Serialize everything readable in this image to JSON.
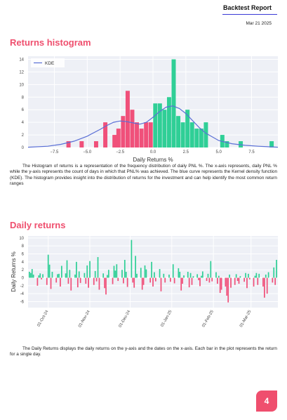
{
  "header": {
    "title": "Backtest Report",
    "date": "Mar 21 2025"
  },
  "histogram_section": {
    "title": "Returns histogram",
    "caption": "The Histogram of returns is a representation of the frequency distribution of daily PNL %. The x-axis represents, daily PNL % while the y-axis represents the count of days in which that PNL% was achieved. The blue curve represents the Kernel density function (KDE). The histogram provides insight into the distribution of returns for the investment and can help identify the most common return ranges"
  },
  "daily_section": {
    "title": "Daily returns",
    "caption": "The Daily Returns displays the daily returns on the y-axis and the dates on the x-axis. Each bar in the plot represents the return for a single day."
  },
  "page_number": "4",
  "colors": {
    "negative": "#f0507a",
    "positive": "#2fcf96",
    "kde": "#5a6fd6",
    "plot_bg": "#eef0f6",
    "accent": "#ef4f6e"
  },
  "chart_data": [
    {
      "type": "bar",
      "xlabel": "Daily Returns %",
      "ylabel": "",
      "xlim": [
        -9.5,
        9.5
      ],
      "ylim": [
        0,
        14.5
      ],
      "xticks": [
        -7.5,
        -5,
        -2.5,
        0,
        2.5,
        5,
        7.5
      ],
      "xtick_labels": [
        "−7.5",
        "−5.0",
        "−2.5",
        "0.0",
        "2.5",
        "5.0",
        "7.5"
      ],
      "yticks": [
        0,
        2,
        4,
        6,
        8,
        10,
        12,
        14
      ],
      "legend": {
        "entries": [
          "KDE"
        ],
        "position": "top-left"
      },
      "bin_width": 0.35,
      "bins": [
        {
          "x": -6.6,
          "value": 1
        },
        {
          "x": -5.6,
          "value": 1
        },
        {
          "x": -4.5,
          "value": 1
        },
        {
          "x": -3.8,
          "value": 4
        },
        {
          "x": -3.1,
          "value": 2
        },
        {
          "x": -2.8,
          "value": 3
        },
        {
          "x": -2.45,
          "value": 5
        },
        {
          "x": -2.1,
          "value": 9
        },
        {
          "x": -1.75,
          "value": 6
        },
        {
          "x": -1.4,
          "value": 4
        },
        {
          "x": -1.05,
          "value": 3
        },
        {
          "x": -0.7,
          "value": 4
        },
        {
          "x": -0.35,
          "value": 4
        },
        {
          "x": 0.0,
          "value": 7
        },
        {
          "x": 0.35,
          "value": 7
        },
        {
          "x": 0.7,
          "value": 6
        },
        {
          "x": 1.05,
          "value": 8
        },
        {
          "x": 1.4,
          "value": 14
        },
        {
          "x": 1.75,
          "value": 5
        },
        {
          "x": 2.1,
          "value": 4
        },
        {
          "x": 2.45,
          "value": 6
        },
        {
          "x": 2.8,
          "value": 4
        },
        {
          "x": 3.15,
          "value": 3
        },
        {
          "x": 3.5,
          "value": 3
        },
        {
          "x": 3.85,
          "value": 4
        },
        {
          "x": 5.1,
          "value": 2
        },
        {
          "x": 5.45,
          "value": 1
        },
        {
          "x": 6.5,
          "value": 1
        },
        {
          "x": 8.85,
          "value": 1
        }
      ],
      "kde": {
        "x": [
          -9.5,
          -8,
          -7,
          -6,
          -5,
          -4,
          -3.5,
          -3,
          -2.5,
          -2,
          -1.5,
          -1,
          -0.5,
          0,
          0.5,
          1,
          1.5,
          2,
          2.5,
          3,
          3.5,
          4,
          5,
          6,
          7,
          8,
          9.5
        ],
        "y": [
          0.05,
          0.2,
          0.5,
          1.0,
          1.8,
          2.9,
          3.5,
          4.0,
          4.2,
          4.1,
          3.9,
          3.7,
          4.0,
          4.8,
          5.7,
          6.4,
          6.6,
          6.2,
          5.4,
          4.3,
          3.2,
          2.3,
          1.1,
          0.6,
          0.35,
          0.2,
          0.05
        ]
      }
    },
    {
      "type": "bar",
      "title": "",
      "xlabel": "",
      "ylabel": "Daily Returns %",
      "ylim": [
        -7.5,
        10.5
      ],
      "yticks": [
        -6,
        -4,
        -2,
        0,
        2,
        4,
        6,
        8,
        10
      ],
      "x_start": "2024-09-17",
      "xticks": [
        "2024-10-01",
        "2024-11-01",
        "2024-12-01",
        "2025-01-01",
        "2025-02-01",
        "2025-03-01"
      ],
      "xtick_labels": [
        "01-Oct-24",
        "01-Nov-24",
        "01-Dec-24",
        "01-Jan-25",
        "01-Feb-25",
        "01-Mar-25"
      ],
      "dates": [
        "2024-09-17",
        "2024-09-18",
        "2024-09-19",
        "2024-09-20",
        "2024-09-23",
        "2024-09-24",
        "2024-09-25",
        "2024-09-26",
        "2024-09-27",
        "2024-09-30",
        "2024-10-01",
        "2024-10-02",
        "2024-10-03",
        "2024-10-04",
        "2024-10-07",
        "2024-10-08",
        "2024-10-09",
        "2024-10-10",
        "2024-10-11",
        "2024-10-14",
        "2024-10-15",
        "2024-10-16",
        "2024-10-17",
        "2024-10-18",
        "2024-10-21",
        "2024-10-22",
        "2024-10-23",
        "2024-10-24",
        "2024-10-25",
        "2024-10-28",
        "2024-10-29",
        "2024-10-30",
        "2024-10-31",
        "2024-11-01",
        "2024-11-04",
        "2024-11-05",
        "2024-11-06",
        "2024-11-07",
        "2024-11-08",
        "2024-11-11",
        "2024-11-12",
        "2024-11-13",
        "2024-11-14",
        "2024-11-15",
        "2024-11-18",
        "2024-11-19",
        "2024-11-20",
        "2024-11-21",
        "2024-11-22",
        "2024-11-25",
        "2024-11-26",
        "2024-11-27",
        "2024-11-28",
        "2024-11-29",
        "2024-12-02",
        "2024-12-03",
        "2024-12-04",
        "2024-12-05",
        "2024-12-06",
        "2024-12-09",
        "2024-12-10",
        "2024-12-11",
        "2024-12-12",
        "2024-12-13",
        "2024-12-16",
        "2024-12-17",
        "2024-12-18",
        "2024-12-19",
        "2024-12-20",
        "2024-12-23",
        "2024-12-24",
        "2024-12-26",
        "2024-12-27",
        "2024-12-30",
        "2024-12-31",
        "2025-01-02",
        "2025-01-03",
        "2025-01-06",
        "2025-01-07",
        "2025-01-08",
        "2025-01-09",
        "2025-01-10",
        "2025-01-13",
        "2025-01-14",
        "2025-01-15",
        "2025-01-16",
        "2025-01-17",
        "2025-01-20",
        "2025-01-21",
        "2025-01-22",
        "2025-01-23",
        "2025-01-24",
        "2025-01-27",
        "2025-01-28",
        "2025-01-29",
        "2025-01-30",
        "2025-01-31",
        "2025-02-03",
        "2025-02-04",
        "2025-02-05",
        "2025-02-06",
        "2025-02-07",
        "2025-02-10",
        "2025-02-11",
        "2025-02-12",
        "2025-02-13",
        "2025-02-14",
        "2025-02-17",
        "2025-02-18",
        "2025-02-19",
        "2025-02-20",
        "2025-02-21",
        "2025-02-24",
        "2025-02-25",
        "2025-02-26",
        "2025-02-27",
        "2025-02-28",
        "2025-03-03",
        "2025-03-04",
        "2025-03-05",
        "2025-03-06",
        "2025-03-07",
        "2025-03-10",
        "2025-03-11",
        "2025-03-12",
        "2025-03-13",
        "2025-03-14",
        "2025-03-17",
        "2025-03-18",
        "2025-03-19",
        "2025-03-20"
      ],
      "values": [
        1.5,
        1.2,
        2.2,
        0.8,
        -2.0,
        0.6,
        1.1,
        -0.4,
        0.9,
        -1.8,
        5.8,
        3.3,
        -2.8,
        1.5,
        -1.2,
        0.9,
        1.0,
        -2.2,
        3.0,
        1.1,
        4.4,
        -1.5,
        2.0,
        -3.2,
        0.8,
        4.0,
        -2.4,
        1.6,
        -1.3,
        1.2,
        -1.5,
        3.1,
        -2.5,
        4.2,
        -1.8,
        1.7,
        -0.9,
        5.2,
        -3.0,
        1.1,
        -2.6,
        -4.2,
        0.7,
        2.0,
        -1.6,
        3.0,
        1.8,
        3.4,
        -0.8,
        2.0,
        -1.4,
        4.5,
        1.5,
        -2.3,
        9.5,
        -1.2,
        -2.5,
        5.5,
        1.0,
        2.5,
        -3.0,
        -1.8,
        3.1,
        2.1,
        -1.2,
        4.0,
        -2.2,
        1.4,
        -0.9,
        2.2,
        -3.4,
        1.0,
        -1.2,
        0.8,
        -1.0,
        3.4,
        -1.4,
        2.4,
        1.5,
        -3.2,
        -1.5,
        0.6,
        1.5,
        -2.4,
        1.2,
        -1.8,
        0.4,
        0.9,
        -0.6,
        -2.1,
        0.5,
        1.6,
        -0.8,
        1.0,
        -1.2,
        4.2,
        -0.9,
        1.4,
        -1.5,
        0.5,
        -3.8,
        -3.0,
        -2.2,
        -4.5,
        -6.2,
        0.8,
        -2.5,
        -1.8,
        0.9,
        -0.8,
        -1.5,
        0.4,
        -1.0,
        1.2,
        -2.6,
        1.0,
        -0.4,
        -2.2,
        0.5,
        1.2,
        -1.8,
        1.0,
        -2.2,
        -5.0,
        0.8,
        -4.0,
        1.4,
        -1.2,
        2.6,
        -1.8,
        4.5
      ]
    }
  ]
}
